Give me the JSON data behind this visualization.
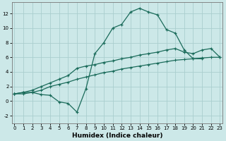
{
  "xlabel": "Humidex (Indice chaleur)",
  "background_color": "#cce8e8",
  "grid_color": "#aacece",
  "line_color": "#1a6b5a",
  "xlim": [
    -0.3,
    23.3
  ],
  "ylim": [
    -3.0,
    13.5
  ],
  "xticks": [
    0,
    1,
    2,
    3,
    4,
    5,
    6,
    7,
    8,
    9,
    10,
    11,
    12,
    13,
    14,
    15,
    16,
    17,
    18,
    19,
    20,
    21,
    22,
    23
  ],
  "yticks": [
    -2,
    0,
    2,
    4,
    6,
    8,
    10,
    12
  ],
  "line1_x": [
    0,
    1,
    2,
    3,
    4,
    5,
    6,
    7,
    8,
    9,
    10,
    11,
    12,
    13,
    14,
    15,
    16,
    17,
    18,
    19,
    20,
    21
  ],
  "line1_y": [
    1.0,
    1.2,
    1.2,
    0.9,
    0.8,
    -0.1,
    -0.3,
    -1.5,
    1.7,
    6.5,
    8.0,
    10.0,
    10.5,
    12.2,
    12.7,
    12.2,
    11.8,
    9.8,
    9.3,
    7.0,
    5.8,
    5.8
  ],
  "line2_x": [
    0,
    1,
    2,
    3,
    4,
    5,
    6,
    7,
    8,
    9,
    10,
    11,
    12,
    13,
    14,
    15,
    16,
    17,
    18,
    19,
    20,
    21,
    22,
    23
  ],
  "line2_y": [
    1.0,
    1.2,
    1.5,
    2.0,
    2.5,
    3.0,
    3.5,
    4.5,
    4.8,
    5.0,
    5.3,
    5.5,
    5.8,
    6.0,
    6.3,
    6.5,
    6.7,
    7.0,
    7.2,
    6.7,
    6.5,
    7.0,
    7.2,
    6.0
  ],
  "line3_x": [
    0,
    1,
    2,
    3,
    4,
    5,
    6,
    7,
    8,
    9,
    10,
    11,
    12,
    13,
    14,
    15,
    16,
    17,
    18,
    19,
    20,
    21,
    22,
    23
  ],
  "line3_y": [
    1.0,
    1.0,
    1.2,
    1.5,
    2.0,
    2.3,
    2.6,
    3.0,
    3.3,
    3.6,
    3.9,
    4.1,
    4.4,
    4.6,
    4.8,
    5.0,
    5.2,
    5.4,
    5.6,
    5.7,
    5.8,
    5.9,
    6.0,
    6.0
  ]
}
